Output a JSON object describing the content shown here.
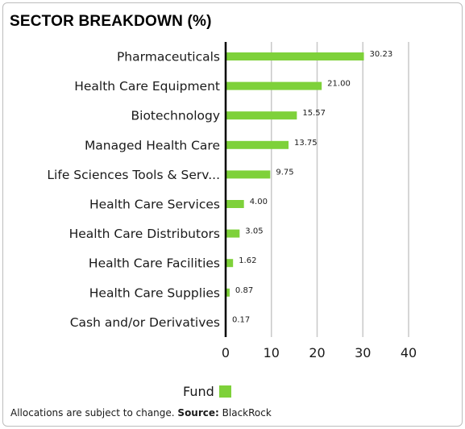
{
  "header": {
    "title": "SECTOR BREAKDOWN (%)"
  },
  "colors": {
    "bar": "#7ed13a",
    "axis": "#000000",
    "grid": "#c8c8c8"
  },
  "chart_data": {
    "type": "bar",
    "orientation": "horizontal",
    "title": "SECTOR BREAKDOWN (%)",
    "categories": [
      "Pharmaceuticals",
      "Health Care Equipment",
      "Biotechnology",
      "Managed Health Care",
      "Life Sciences Tools & Serv...",
      "Health Care Services",
      "Health Care Distributors",
      "Health Care Facilities",
      "Health Care Supplies",
      "Cash and/or Derivatives"
    ],
    "series": [
      {
        "name": "Fund",
        "values": [
          30.23,
          21.0,
          15.57,
          13.75,
          9.75,
          4.0,
          3.05,
          1.62,
          0.87,
          0.17
        ]
      }
    ],
    "data_labels": [
      "30.23",
      "21.00",
      "15.57",
      "13.75",
      "9.75",
      "4.00",
      "3.05",
      "1.62",
      "0.87",
      "0.17"
    ],
    "xlim": [
      0,
      40
    ],
    "xticks": [
      0,
      10,
      20,
      30,
      40
    ],
    "xtick_labels": [
      "0",
      "10",
      "20",
      "30",
      "40"
    ],
    "grid": true,
    "legend_position": "bottom-center"
  },
  "legend": {
    "label": "Fund"
  },
  "footer": {
    "text": "Allocations are subject to change.",
    "source_label": "Source:",
    "source_value": "BlackRock"
  }
}
